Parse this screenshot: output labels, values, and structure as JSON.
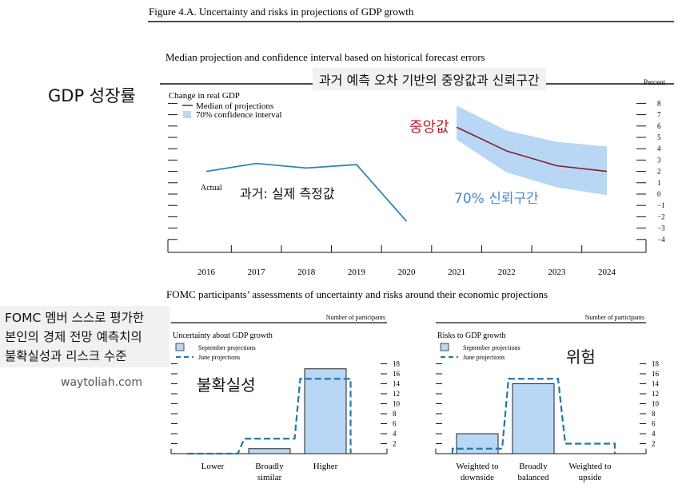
{
  "figure_title": "Figure 4.A. Uncertainty and risks in projections of GDP growth",
  "top_panel_title": "Median projection and confidence interval based on historical forecast errors",
  "bottom_section_title": "FOMC participants’ assessments of uncertainty and risks around their economic projections",
  "annotations": {
    "gdp_label": "GDP 성장률",
    "top_banner": "과거 예측 오차 기반의 중앙값과 신뢰구간",
    "past_measure": "과거: 실제 측정값",
    "median_label": "중앙값",
    "ci_label": "70% 신뢰구간",
    "fomc_line1": "FOMC 멤버 스스로 평가한",
    "fomc_line2": "본인의 경제 전망 예측치의",
    "fomc_line3": "불확실성과 리스크 수준",
    "watermark": "waytoliah.com",
    "uncertainty_label": "불확실성",
    "risk_label": "위험"
  },
  "colors": {
    "median": "#8b1a1a",
    "actual": "#2e86b8",
    "ci_fill": "#b8d7f5",
    "bar_fill": "#b8d7f5",
    "bar_stroke": "#222222",
    "june_dash": "#1f78a8",
    "median_ann": "#c0172e",
    "ci_ann": "#4a88d0"
  },
  "chart_data": [
    {
      "type": "line",
      "title": "Change in real GDP",
      "ylabel": "Percent",
      "x": [
        2016,
        2017,
        2018,
        2019,
        2020,
        2021,
        2022,
        2023,
        2024
      ],
      "ylim": [
        -5,
        9
      ],
      "yticks": [
        -4,
        -3,
        -2,
        -1,
        0,
        1,
        2,
        3,
        4,
        5,
        6,
        7,
        8
      ],
      "series": [
        {
          "name": "Actual",
          "x": [
            2016,
            2017,
            2018,
            2019,
            2020
          ],
          "values": [
            2.0,
            2.7,
            2.3,
            2.6,
            -2.4
          ]
        },
        {
          "name": "Median of projections",
          "x": [
            2021,
            2022,
            2023,
            2024
          ],
          "values": [
            5.9,
            3.8,
            2.5,
            2.0
          ]
        }
      ],
      "confidence_interval": {
        "name": "70% confidence interval",
        "x": [
          2021,
          2022,
          2023,
          2024
        ],
        "lower": [
          4.8,
          1.9,
          0.6,
          -0.1
        ],
        "upper": [
          7.8,
          5.6,
          4.6,
          4.2
        ]
      },
      "legend": [
        "Median of projections",
        "70% confidence interval"
      ],
      "series_label": "Actual"
    },
    {
      "type": "bar",
      "title": "Uncertainty about GDP growth",
      "ylabel": "Number of participants",
      "categories": [
        "Lower",
        "Broadly similar",
        "Higher"
      ],
      "category_lines": [
        [
          "Lower"
        ],
        [
          "Broadly",
          "similar"
        ],
        [
          "Higher"
        ]
      ],
      "series": [
        {
          "name": "September projections",
          "values": [
            0,
            1,
            17
          ]
        },
        {
          "name": "June projections",
          "values": [
            0,
            3,
            15
          ]
        }
      ],
      "ylim": [
        0,
        18
      ],
      "yticks": [
        2,
        4,
        6,
        8,
        10,
        12,
        14,
        16,
        18
      ],
      "legend": [
        "September projections",
        "June projections"
      ]
    },
    {
      "type": "bar",
      "title": "Risks to GDP growth",
      "ylabel": "Number of participants",
      "categories": [
        "Weighted to downside",
        "Broadly balanced",
        "Weighted to upside"
      ],
      "category_lines": [
        [
          "Weighted to",
          "downside"
        ],
        [
          "Broadly",
          "balanced"
        ],
        [
          "Weighted to",
          "upside"
        ]
      ],
      "series": [
        {
          "name": "September projections",
          "values": [
            4,
            14,
            0
          ]
        },
        {
          "name": "June projections",
          "values": [
            1,
            15,
            2
          ]
        }
      ],
      "ylim": [
        0,
        18
      ],
      "yticks": [
        2,
        4,
        6,
        8,
        10,
        12,
        14,
        16,
        18
      ],
      "legend": [
        "September projections",
        "June projections"
      ]
    }
  ]
}
